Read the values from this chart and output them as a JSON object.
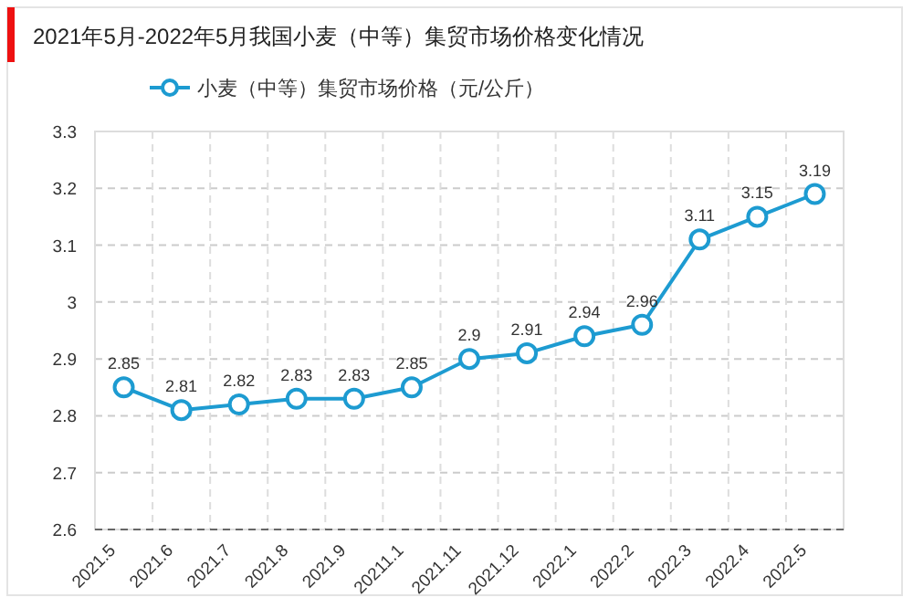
{
  "chart_data": {
    "type": "line",
    "title": "2021年5月-2022年5月我国小麦（中等）集贸市场价格变化情况",
    "categories": [
      "2021.5",
      "2021.6",
      "2021.7",
      "2021.8",
      "2021.9",
      "20211.1",
      "2021.11",
      "2021.12",
      "2022.1",
      "2022.2",
      "2022.3",
      "2022.4",
      "2022.5"
    ],
    "series": [
      {
        "name": "小麦（中等）集贸市场价格（元/公斤）",
        "color": "#1d9bd1",
        "values": [
          2.85,
          2.81,
          2.82,
          2.83,
          2.83,
          2.85,
          2.9,
          2.91,
          2.94,
          2.96,
          3.11,
          3.15,
          3.19
        ]
      }
    ],
    "ylim": [
      2.6,
      3.3
    ],
    "yticks": [
      2.6,
      2.7,
      2.8,
      2.9,
      3,
      3.1,
      3.2,
      3.3
    ],
    "grid": true,
    "legend": "top",
    "marker": "circle",
    "line_style": "solid",
    "data_labels": true
  }
}
